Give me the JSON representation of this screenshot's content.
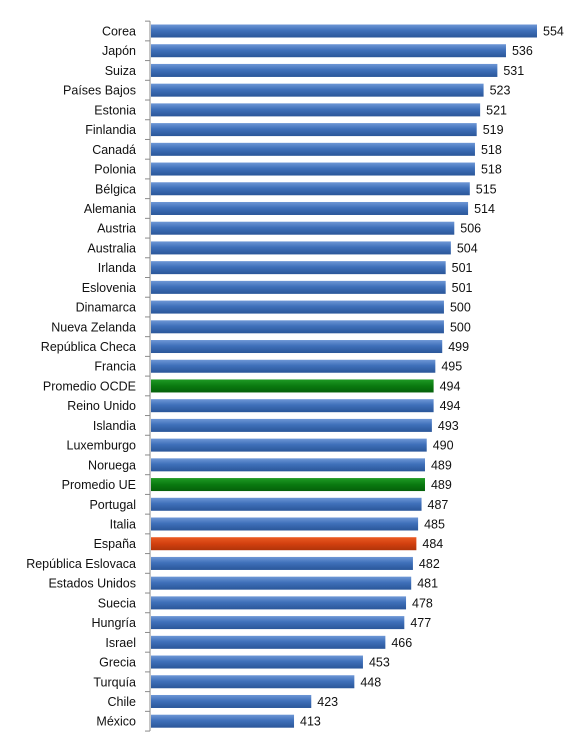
{
  "chart_data": {
    "type": "bar",
    "orientation": "horizontal",
    "title": "",
    "xlabel": "",
    "ylabel": "",
    "grid": false,
    "legend": "none",
    "colors": {
      "default": "#3d6eb5",
      "highlight_average": "#0a7a12",
      "highlight_spain": "#d2400f"
    },
    "categories": [
      "Corea",
      "Japón",
      "Suiza",
      "Países Bajos",
      "Estonia",
      "Finlandia",
      "Canadá",
      "Polonia",
      "Bélgica",
      "Alemania",
      "Austria",
      "Australia",
      "Irlanda",
      "Eslovenia",
      "Dinamarca",
      "Nueva Zelanda",
      "República Checa",
      "Francia",
      "Promedio OCDE",
      "Reino Unido",
      "Islandia",
      "Luxemburgo",
      "Noruega",
      "Promedio UE",
      "Portugal",
      "Italia",
      "España",
      "República Eslovaca",
      "Estados Unidos",
      "Suecia",
      "Hungría",
      "Israel",
      "Grecia",
      "Turquía",
      "Chile",
      "México"
    ],
    "values": [
      554,
      536,
      531,
      523,
      521,
      519,
      518,
      518,
      515,
      514,
      506,
      504,
      501,
      501,
      500,
      500,
      499,
      495,
      494,
      494,
      493,
      490,
      489,
      489,
      487,
      485,
      484,
      482,
      481,
      478,
      477,
      466,
      453,
      448,
      423,
      413
    ],
    "bar_colors": [
      "default",
      "default",
      "default",
      "default",
      "default",
      "default",
      "default",
      "default",
      "default",
      "default",
      "default",
      "default",
      "default",
      "default",
      "default",
      "default",
      "default",
      "default",
      "highlight_average",
      "default",
      "default",
      "default",
      "default",
      "highlight_average",
      "default",
      "default",
      "highlight_spain",
      "default",
      "default",
      "default",
      "default",
      "default",
      "default",
      "default",
      "default",
      "default"
    ],
    "xlim": [
      330,
      554
    ]
  }
}
